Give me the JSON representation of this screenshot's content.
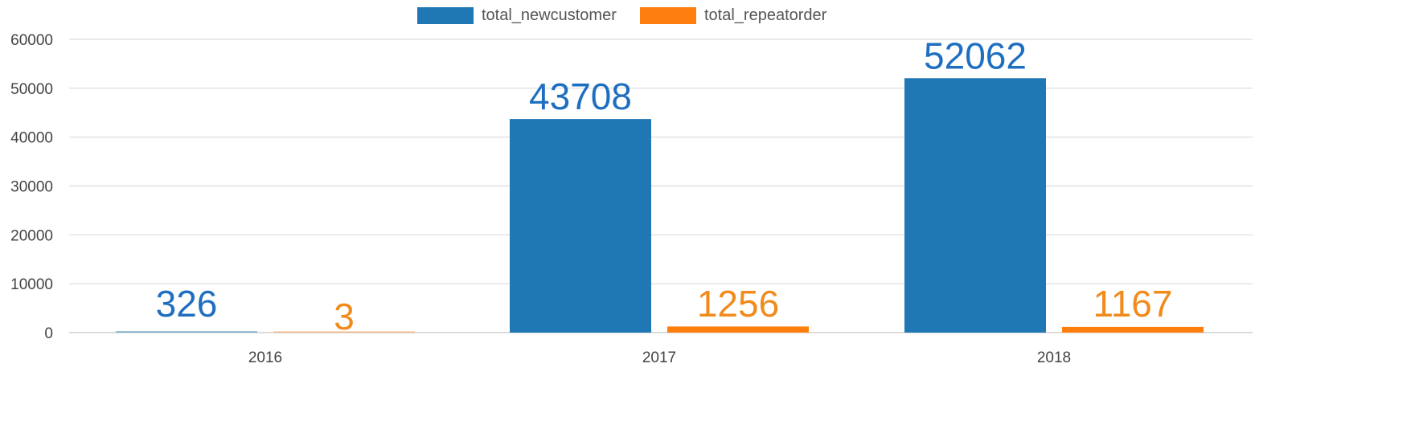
{
  "chart_data": {
    "type": "bar",
    "title": "",
    "xlabel": "",
    "ylabel": "",
    "categories": [
      "2016",
      "2017",
      "2018"
    ],
    "series": [
      {
        "name": "total_newcustomer",
        "color": "#1f77b4",
        "values": [
          326,
          43708,
          52062
        ]
      },
      {
        "name": "total_repeatorder",
        "color": "#ff7f0e",
        "values": [
          3,
          1256,
          1167
        ]
      }
    ],
    "label_colors": [
      "#1f6fc0",
      "#f08b1c"
    ],
    "ylim": [
      0,
      60000
    ],
    "yticks": [
      0,
      10000,
      20000,
      30000,
      40000,
      50000,
      60000
    ],
    "grid": true,
    "legend_position": "top"
  }
}
